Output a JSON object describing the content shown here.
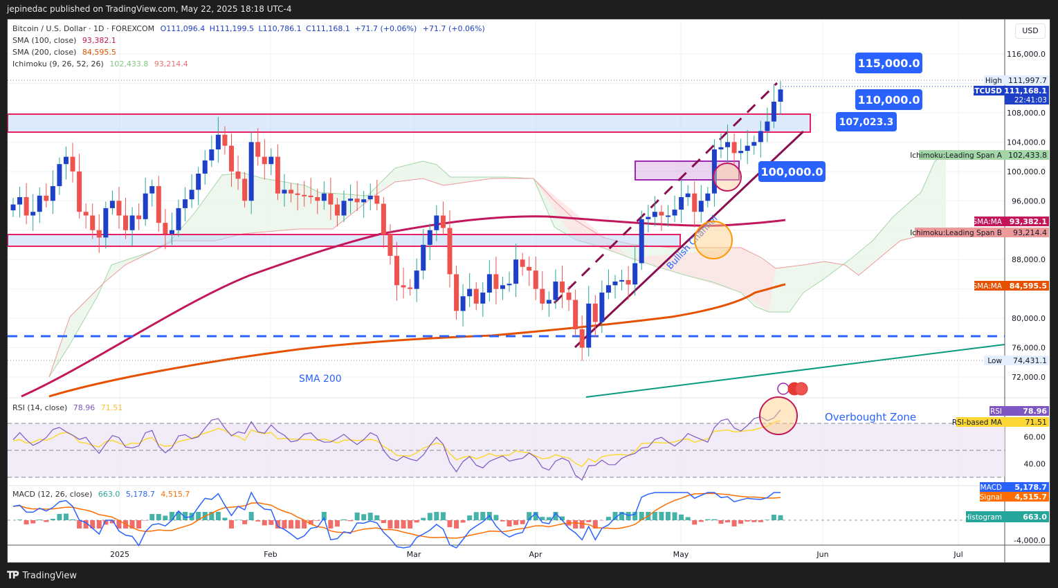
{
  "header": {
    "published": "jepinedac published on TradingView.com, May 22, 2025 18:18 UTC-4"
  },
  "legend": {
    "symbol": "Bitcoin / U.S. Dollar · 1D · FOREXCOM",
    "open": "O111,096.4",
    "high": "H111,199.5",
    "low": "L110,786.1",
    "close": "C111,168.1",
    "change1": "+71.7 (+0.06%)",
    "change2": "+71.7 (+0.06%)",
    "sma100_label": "SMA (100, close)",
    "sma100_value": "93,382.1",
    "sma200_label": "SMA (200, close)",
    "sma200_value": "84,595.5",
    "ichimoku_label": "Ichimoku (9, 26, 52, 26)",
    "ichimoku_a": "102,433.8",
    "ichimoku_b": "93,214.4",
    "rsi_label": "RSI (14, close)",
    "rsi_value": "78.96",
    "rsi_ma_value": "71.51",
    "macd_label": "MACD (12, 26, close)",
    "macd_hist": "663.0",
    "macd_value": "5,178.7",
    "macd_signal": "4,515.7"
  },
  "price_axis": {
    "currency": "USD",
    "ticks": [
      "116,000.0",
      "108,000.0",
      "104,000.0",
      "100,000.0",
      "96,000.0",
      "88,000.0",
      "80,000.0",
      "76,000.0",
      "72,000.0"
    ],
    "rsi_ticks": [
      "60.00",
      "40.00"
    ],
    "macd_ticks": [
      "-4,000.0"
    ]
  },
  "axis_labels": {
    "high_tag": "High",
    "high_value": "111,997.7",
    "symbol_tag": "BTCUSD",
    "last_value": "111,168.1",
    "countdown": "22:41:03",
    "span_a_tag": "Ichimoku:Leading Span A",
    "span_a_value": "102,433.8",
    "sma100_tag": "SMA:MA",
    "sma100_value": "93,382.1",
    "span_b_tag": "Ichimoku:Leading Span B",
    "span_b_value": "93,214.4",
    "sma200_tag": "SMA:MA",
    "sma200_value": "84,595.5",
    "low_tag": "Low",
    "low_value": "74,431.1",
    "rsi_tag": "RSI",
    "rsi_value": "78.96",
    "rsi_ma_tag": "RSI-based MA",
    "rsi_ma_value": "71.51",
    "macd_tag": "MACD",
    "macd_value": "5,178.7",
    "signal_tag": "Signal",
    "signal_value": "4,515.7",
    "hist_tag": "Histogram",
    "hist_value": "663.0"
  },
  "time_axis": [
    "2025",
    "Feb",
    "Mar",
    "Apr",
    "May",
    "Jun",
    "Jul"
  ],
  "annotations": {
    "target_115": "115,000.0",
    "target_110": "110,000.0",
    "level_107": "107,023.3",
    "level_100": "100,000.0",
    "sma200_text": "SMA 200",
    "channel_text": "Bullish Channel",
    "overbought_text": "Overbought Zone"
  },
  "footer": {
    "brand": "TradingView"
  },
  "colors": {
    "up": "#1e40c8",
    "down": "#ef5350",
    "sma100": "#c2185b",
    "sma200": "#e65100",
    "span_a": "#a5d6a7",
    "span_b": "#ef9a9a",
    "rsi": "#7e57c2",
    "rsi_ma": "#fdd835",
    "macd": "#2962ff",
    "signal": "#ff6d00",
    "label_blue": "#2962ff"
  },
  "chart_data": {
    "type": "candlestick",
    "title": "Bitcoin / U.S. Dollar · 1D · FOREXCOM",
    "xlabel": "",
    "ylabel": "USD",
    "ylim": [
      70000,
      118000
    ],
    "x_ticks": [
      "2025",
      "Feb",
      "Mar",
      "Apr",
      "May",
      "Jun",
      "Jul"
    ],
    "ohlc_last": {
      "open": 111096.4,
      "high": 111199.5,
      "low": 110786.1,
      "close": 111168.1
    },
    "period_high": 111997.7,
    "period_low": 74431.1,
    "series": [
      {
        "name": "SMA 100",
        "last": 93382.1
      },
      {
        "name": "SMA 200",
        "last": 84595.5
      },
      {
        "name": "Ichimoku Leading Span A",
        "last": 102433.8
      },
      {
        "name": "Ichimoku Leading Span B",
        "last": 93214.4
      },
      {
        "name": "RSI 14",
        "last": 78.96
      },
      {
        "name": "RSI-based MA",
        "last": 71.51
      },
      {
        "name": "MACD",
        "last": 5178.7
      },
      {
        "name": "Signal",
        "last": 4515.7
      },
      {
        "name": "Histogram",
        "last": 663.0
      }
    ],
    "levels": [
      115000,
      110000,
      107023.3,
      100000
    ],
    "resistance_zone": [
      105500,
      107800
    ],
    "support_zone": [
      90300,
      91500
    ],
    "dashed_support": 77500,
    "closes_approx": [
      95500,
      96500,
      94000,
      94500,
      96700,
      96000,
      98000,
      101000,
      102000,
      100000,
      94500,
      94000,
      92000,
      91000,
      95000,
      96000,
      94000,
      92000,
      94000,
      93500,
      97000,
      98000,
      93000,
      91500,
      92000,
      95000,
      96200,
      97500,
      99700,
      101500,
      103000,
      105000,
      103500,
      100000,
      99000,
      96000,
      104000,
      102000,
      101000,
      102000,
      97000,
      97500,
      97000,
      96800,
      96700,
      96500,
      96000,
      97000,
      95500,
      94000,
      96000,
      96300,
      95800,
      96200,
      96700,
      95600,
      91400,
      88500,
      84500,
      84200,
      84000,
      86500,
      90000,
      92000,
      94000,
      92300,
      86000,
      81000,
      83000,
      84000,
      82000,
      83500,
      86000,
      84000,
      84500,
      84700,
      88000,
      87000,
      86500,
      84000,
      82000,
      82500,
      85000,
      83500,
      82500,
      78500,
      76000,
      82000,
      79500,
      83500,
      84500,
      85000,
      85200,
      84600,
      87500,
      93500,
      93800,
      94500,
      94000,
      94000,
      94800,
      96500,
      97000,
      94500,
      96000,
      97000,
      103000,
      103300,
      104000,
      102500,
      102800,
      103500,
      104000,
      105500,
      106800,
      109500,
      111168
    ]
  }
}
